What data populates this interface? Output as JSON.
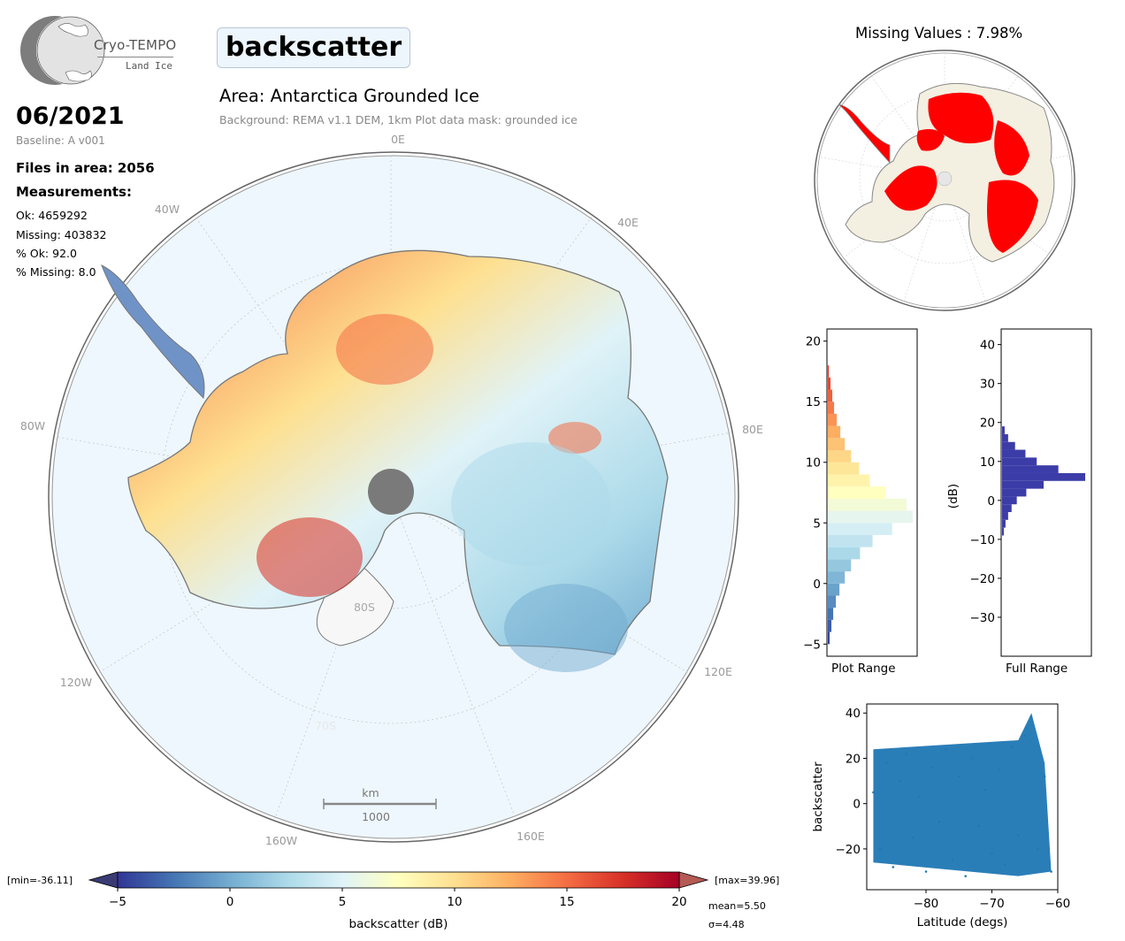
{
  "logo": {
    "name": "Cryo-TEMPO",
    "subtitle": "Land Ice"
  },
  "variable": "backscatter",
  "date": "06/2021",
  "baseline": "Baseline: A v001",
  "files_in_area": "Files in area: 2056",
  "measurements_label": "Measurements:",
  "stats": {
    "ok": "Ok: 4659292",
    "missing": "Missing: 403832",
    "pct_ok": "% Ok: 92.0",
    "pct_missing": "% Missing: 8.0"
  },
  "area_title": "Area: Antarctica Grounded Ice",
  "background_note": "Background: REMA v1.1 DEM, 1km   Plot data mask: grounded ice",
  "map": {
    "longitude_labels": {
      "top": "0E",
      "l40": "40W",
      "r40": "40E",
      "l80": "80W",
      "r80": "80E",
      "l120": "120W",
      "r120": "120E",
      "l160": "160W",
      "r160": "160E"
    },
    "latitude_labels": {
      "lat80": "80S",
      "lat70": "70S"
    },
    "scalebar": {
      "unit": "km",
      "value": "1000"
    },
    "colors": {
      "ocean": "#eef7fd",
      "ice_shelf": "#f7f7f7",
      "coast": "#777777",
      "pole_hole": "#7a7a7a"
    }
  },
  "colorbar": {
    "label": "backscatter (dB)",
    "ticks": [
      "−5",
      "0",
      "5",
      "10",
      "15",
      "20"
    ],
    "min_label": "[min=-36.11]",
    "max_label": "[max=39.96]",
    "mean_label": "mean=5.50",
    "sigma_label": "σ=4.48",
    "range": [
      -5,
      20
    ],
    "colors": [
      "#313695",
      "#4575b4",
      "#74add1",
      "#abd9e9",
      "#e0f3f8",
      "#ffffbf",
      "#fee090",
      "#fdae61",
      "#f46d43",
      "#d73027",
      "#a50026"
    ]
  },
  "missing_map": {
    "title": "Missing Values : 7.98%",
    "colors": {
      "missing": "#ff0000",
      "ok": "#f3efe1",
      "ocean": "#ffffff"
    }
  },
  "chart_data": [
    {
      "type": "histogram",
      "xlabel": "Plot Range",
      "ylabel": "",
      "ylim": [
        -6,
        21
      ],
      "yticks": [
        "−5",
        "0",
        "5",
        "10",
        "15",
        "20"
      ],
      "bins": [
        -5,
        -4,
        -3,
        -2,
        -1,
        0,
        1,
        2,
        3,
        4,
        5,
        6,
        7,
        8,
        9,
        10,
        11,
        12,
        13,
        14,
        15,
        16,
        17
      ],
      "relative_counts": [
        0.02,
        0.04,
        0.06,
        0.09,
        0.13,
        0.19,
        0.26,
        0.36,
        0.5,
        0.72,
        0.95,
        0.88,
        0.65,
        0.47,
        0.35,
        0.26,
        0.19,
        0.14,
        0.1,
        0.07,
        0.05,
        0.03,
        0.01
      ],
      "colormap": "RdYlBu_r"
    },
    {
      "type": "histogram",
      "xlabel": "Full Range",
      "ylabel": "(dB)",
      "ylim": [
        -40,
        44
      ],
      "yticks": [
        "40",
        "30",
        "20",
        "10",
        "0",
        "−10",
        "−20",
        "−30"
      ],
      "bins": [
        -9,
        -7,
        -5,
        -3,
        -1,
        1,
        3,
        5,
        7,
        9,
        11,
        13,
        15,
        17
      ],
      "relative_counts": [
        0.02,
        0.04,
        0.07,
        0.11,
        0.17,
        0.28,
        0.48,
        0.96,
        0.65,
        0.4,
        0.27,
        0.15,
        0.07,
        0.03
      ],
      "color": "#3c3ca8"
    },
    {
      "type": "scatter",
      "xlabel": "Latitude (degs)",
      "ylabel": "backscatter",
      "xlim": [
        -89,
        -60
      ],
      "ylim": [
        -38,
        44
      ],
      "xticks": [
        "−80",
        "−70",
        "−60"
      ],
      "yticks": [
        "40",
        "20",
        "0",
        "−20"
      ],
      "points": [
        [
          -88,
          5
        ],
        [
          -87,
          -20
        ],
        [
          -86,
          18
        ],
        [
          -85,
          -28
        ],
        [
          -84,
          10
        ],
        [
          -83,
          22
        ],
        [
          -82,
          -15
        ],
        [
          -81,
          3
        ],
        [
          -80,
          -30
        ],
        [
          -79,
          16
        ],
        [
          -78,
          -8
        ],
        [
          -77,
          24
        ],
        [
          -76,
          -25
        ],
        [
          -75,
          12
        ],
        [
          -74,
          -32
        ],
        [
          -73,
          20
        ],
        [
          -72,
          -10
        ],
        [
          -71,
          6
        ],
        [
          -70,
          -22
        ],
        [
          -69,
          15
        ],
        [
          -68,
          -27
        ],
        [
          -67,
          25
        ],
        [
          -66,
          -14
        ],
        [
          -65,
          30
        ],
        [
          -64,
          38
        ],
        [
          -63,
          -20
        ],
        [
          -62,
          12
        ],
        [
          -61,
          -30
        ]
      ],
      "color": "#1f77b4"
    }
  ]
}
